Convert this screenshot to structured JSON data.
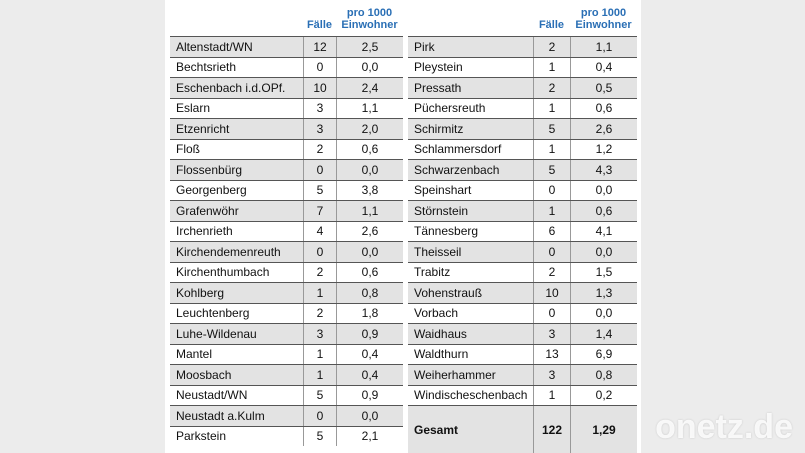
{
  "left": {
    "header": {
      "faelle": "Fälle",
      "pro": "pro 1000",
      "pro2": "Einwohner"
    },
    "rows": [
      [
        "Altenstadt/WN",
        "12",
        "2,5"
      ],
      [
        "Bechtsrieth",
        "0",
        "0,0"
      ],
      [
        "Eschenbach i.d.OPf.",
        "10",
        "2,4"
      ],
      [
        "Eslarn",
        "3",
        "1,1"
      ],
      [
        "Etzenricht",
        "3",
        "2,0"
      ],
      [
        "Floß",
        "2",
        "0,6"
      ],
      [
        "Flossenbürg",
        "0",
        "0,0"
      ],
      [
        "Georgenberg",
        "5",
        "3,8"
      ],
      [
        "Grafenwöhr",
        "7",
        "1,1"
      ],
      [
        "Irchenrieth",
        "4",
        "2,6"
      ],
      [
        "Kirchendemenreuth",
        "0",
        "0,0"
      ],
      [
        "Kirchenthumbach",
        "2",
        "0,6"
      ],
      [
        "Kohlberg",
        "1",
        "0,8"
      ],
      [
        "Leuchtenberg",
        "2",
        "1,8"
      ],
      [
        "Luhe-Wildenau",
        "3",
        "0,9"
      ],
      [
        "Mantel",
        "1",
        "0,4"
      ],
      [
        "Moosbach",
        "1",
        "0,4"
      ],
      [
        "Neustadt/WN",
        "5",
        "0,9"
      ],
      [
        "Neustadt a.Kulm",
        "0",
        "0,0"
      ],
      [
        "Parkstein",
        "5",
        "2,1"
      ]
    ]
  },
  "right": {
    "header": {
      "faelle": "Fälle",
      "pro": "pro 1000",
      "pro2": "Einwohner"
    },
    "rows": [
      [
        "Pirk",
        "2",
        "1,1"
      ],
      [
        "Pleystein",
        "1",
        "0,4"
      ],
      [
        "Pressath",
        "2",
        "0,5"
      ],
      [
        "Püchersreuth",
        "1",
        "0,6"
      ],
      [
        "Schirmitz",
        "5",
        "2,6"
      ],
      [
        "Schlammersdorf",
        "1",
        "1,2"
      ],
      [
        "Schwarzenbach",
        "5",
        "4,3"
      ],
      [
        "Speinshart",
        "0",
        "0,0"
      ],
      [
        "Störnstein",
        "1",
        "0,6"
      ],
      [
        "Tännesberg",
        "6",
        "4,1"
      ],
      [
        "Theisseil",
        "0",
        "0,0"
      ],
      [
        "Trabitz",
        "2",
        "1,5"
      ],
      [
        "Vohenstrauß",
        "10",
        "1,3"
      ],
      [
        "Vorbach",
        "0",
        "0,0"
      ],
      [
        "Waidhaus",
        "3",
        "1,4"
      ],
      [
        "Waldthurn",
        "13",
        "6,9"
      ],
      [
        "Weiherhammer",
        "3",
        "0,8"
      ],
      [
        "Windischeschenbach",
        "1",
        "0,2"
      ]
    ],
    "total": [
      "Gesamt",
      "122",
      "1,29"
    ]
  },
  "watermark": "onetz.de"
}
